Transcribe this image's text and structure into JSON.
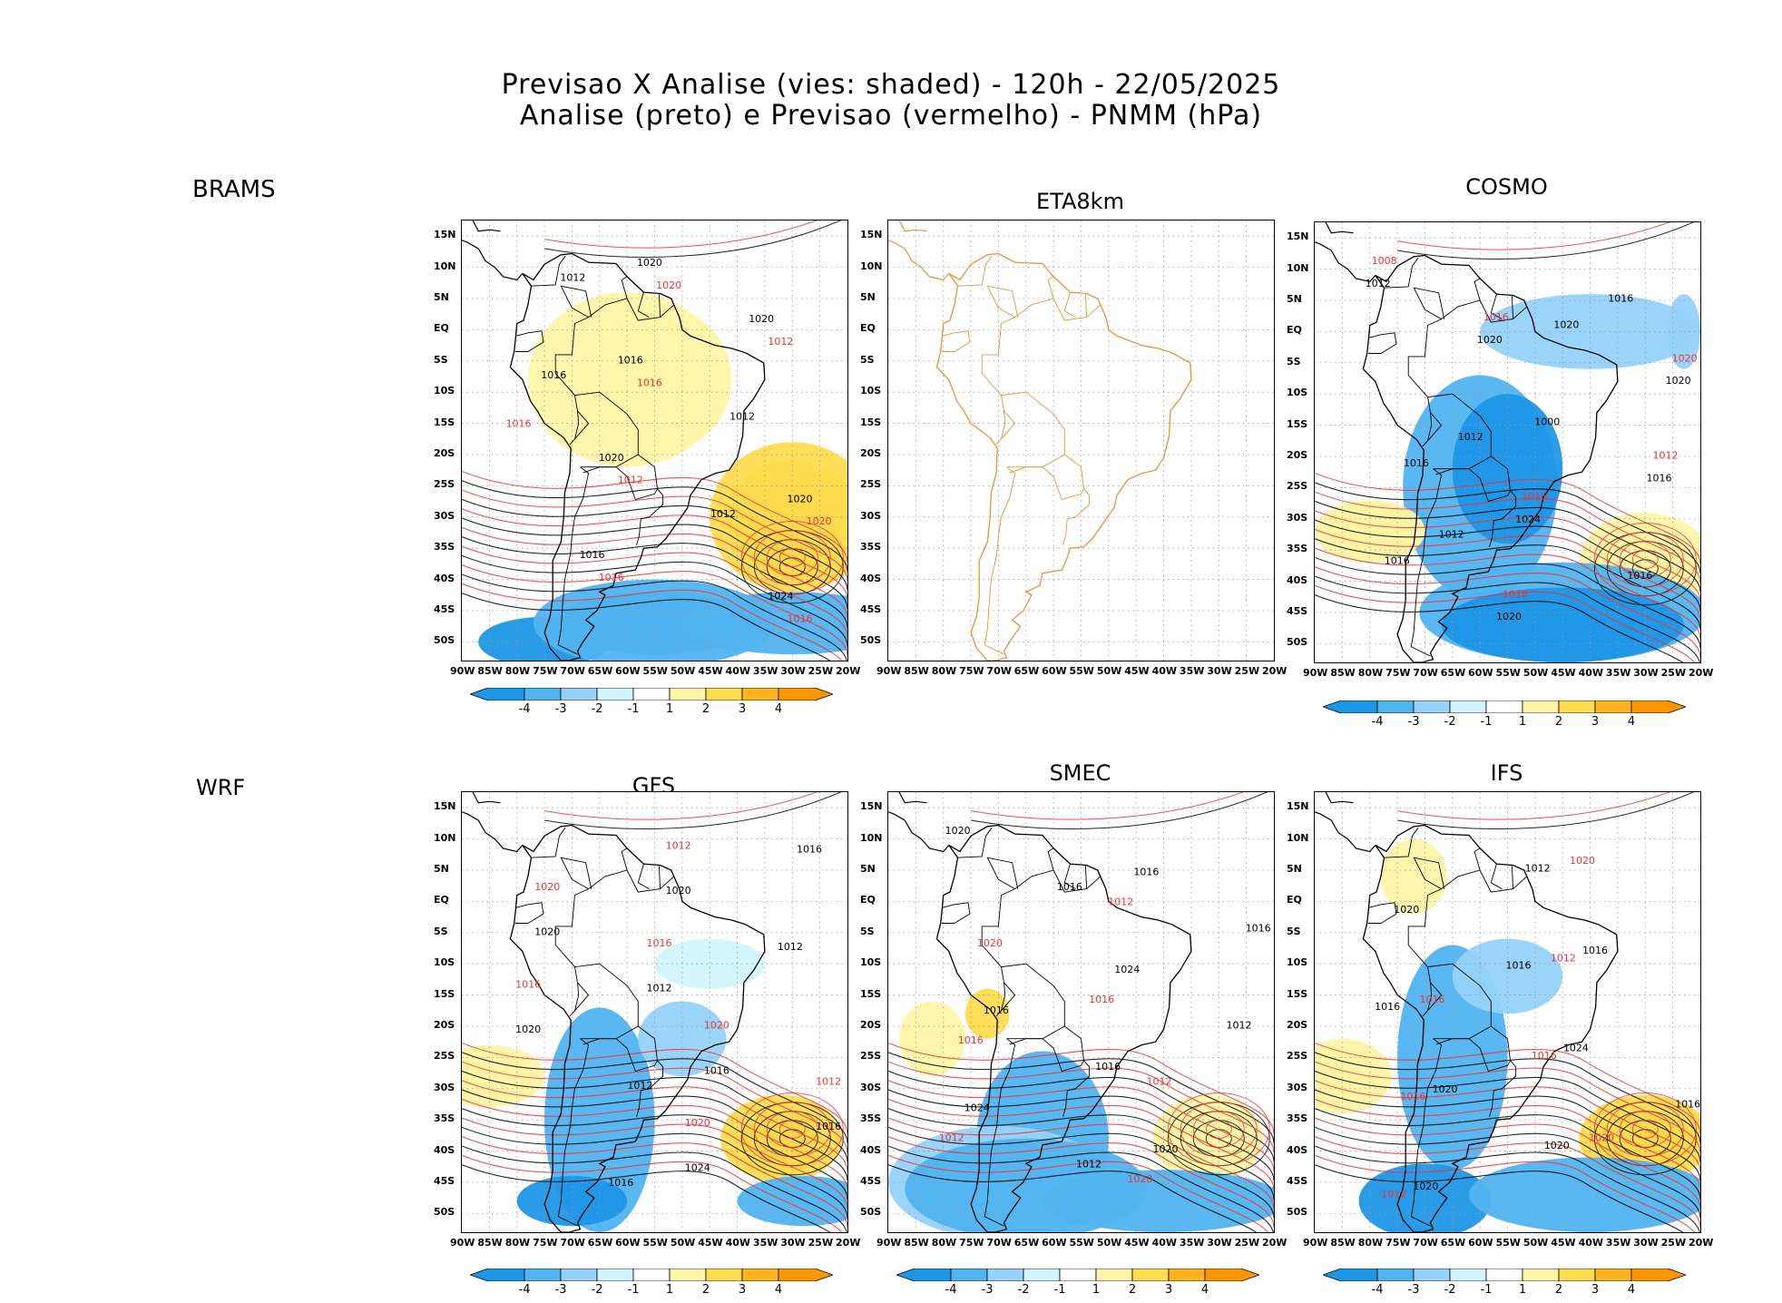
{
  "title": {
    "line1": "Previsao X Analise (vies: shaded) - 120h - 22/05/2025",
    "line2": "Analise (preto) e Previsao (vermelho) - PNMM (hPa)"
  },
  "row_labels": {
    "top": "BRAMS",
    "bottom": "WRF"
  },
  "lat_labels": [
    "15N",
    "10N",
    "5N",
    "EQ",
    "5S",
    "10S",
    "15S",
    "20S",
    "25S",
    "30S",
    "35S",
    "40S",
    "45S",
    "50S"
  ],
  "lon_labels": [
    "90W",
    "85W",
    "80W",
    "75W",
    "70W",
    "65W",
    "60W",
    "55W",
    "50W",
    "45W",
    "40W",
    "35W",
    "30W",
    "25W",
    "20W"
  ],
  "colorbar": {
    "labels": [
      "-4",
      "-3",
      "-2",
      "-1",
      "1",
      "2",
      "3",
      "4"
    ],
    "colors": [
      "#1e96e6",
      "#50b4f0",
      "#96d2fa",
      "#d2f5ff",
      "#ffffff",
      "#fff5aa",
      "#ffdc50",
      "#ffb41e",
      "#ff9600"
    ]
  },
  "panels": [
    {
      "name": "brams",
      "title": "",
      "has_data": true,
      "isobars_black": [
        "1016",
        "1012",
        "1012",
        "1012",
        "1016",
        "1020",
        "1020",
        "1024",
        "1016",
        "1020",
        "1020"
      ],
      "isobars_red": [
        "1016",
        "1012",
        "1012",
        "1016",
        "1016",
        "1020",
        "1020",
        "1016"
      ]
    },
    {
      "name": "eta8km",
      "title": "ETA8km",
      "has_data": false,
      "isobars_black": [],
      "isobars_red": []
    },
    {
      "name": "cosmo",
      "title": "COSMO",
      "has_data": true,
      "isobars_black": [
        "1012",
        "1016",
        "1012",
        "1016",
        "1020",
        "1016",
        "1020",
        "1020",
        "1024",
        "1012",
        "1000",
        "1016",
        "1020",
        "1016"
      ],
      "isobars_red": [
        "1016",
        "1012",
        "1016",
        "1020",
        "1016",
        "1008"
      ]
    },
    {
      "name": "gfs",
      "title": "GFS",
      "has_data": true,
      "isobars_black": [
        "1016",
        "1012",
        "1012",
        "1016",
        "1012",
        "1016",
        "1020",
        "1020",
        "1024",
        "1020",
        "1016"
      ],
      "isobars_red": [
        "1016",
        "1012",
        "1012",
        "1016",
        "1020",
        "1020",
        "1020"
      ]
    },
    {
      "name": "smec",
      "title": "SMEC",
      "has_data": true,
      "isobars_black": [
        "1016",
        "1012",
        "1012",
        "1016",
        "1016",
        "1020",
        "1024",
        "1024",
        "1016",
        "1016",
        "1020"
      ],
      "isobars_red": [
        "1016",
        "1012",
        "1012",
        "1016",
        "1020",
        "1020",
        "1012"
      ]
    },
    {
      "name": "ifs",
      "title": "IFS",
      "has_data": true,
      "isobars_black": [
        "1016",
        "1016",
        "1012",
        "1016",
        "1020",
        "1020",
        "1024",
        "1020",
        "1016",
        "1020"
      ],
      "isobars_red": [
        "1016",
        "1012",
        "1012",
        "1016",
        "1020",
        "1016",
        "1020"
      ]
    }
  ]
}
